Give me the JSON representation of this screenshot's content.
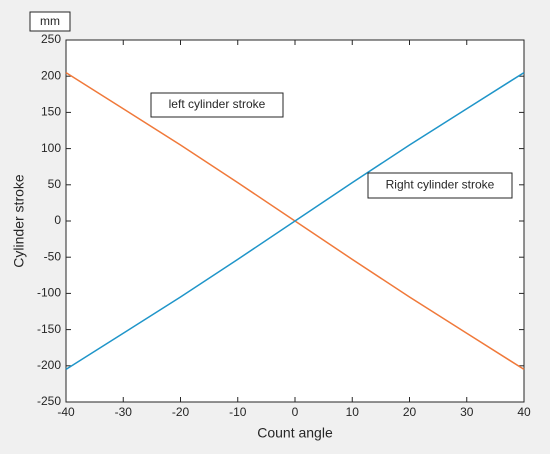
{
  "chart_data": {
    "type": "line",
    "x_label": "Count angle",
    "y_label": "Cylinder stroke",
    "y_unit": "mm",
    "x": [
      -40,
      -30,
      -20,
      -10,
      0,
      10,
      20,
      30,
      40
    ],
    "series": [
      {
        "name": "left cylinder stroke",
        "color": "#f0793a",
        "values": [
          205,
          155,
          105,
          53,
          0,
          -53,
          -105,
          -155,
          -205
        ]
      },
      {
        "name": "Right cylinder stroke",
        "color": "#1f95c9",
        "values": [
          -205,
          -155,
          -105,
          -53,
          0,
          53,
          105,
          155,
          205
        ]
      }
    ],
    "xlim": [
      -40,
      40
    ],
    "xticks": [
      -40,
      -30,
      -20,
      -10,
      0,
      10,
      20,
      30,
      40
    ],
    "ylim": [
      -250,
      250
    ],
    "yticks": [
      -250,
      -200,
      -150,
      -100,
      -50,
      0,
      50,
      100,
      150,
      200,
      250
    ],
    "grid": false
  }
}
